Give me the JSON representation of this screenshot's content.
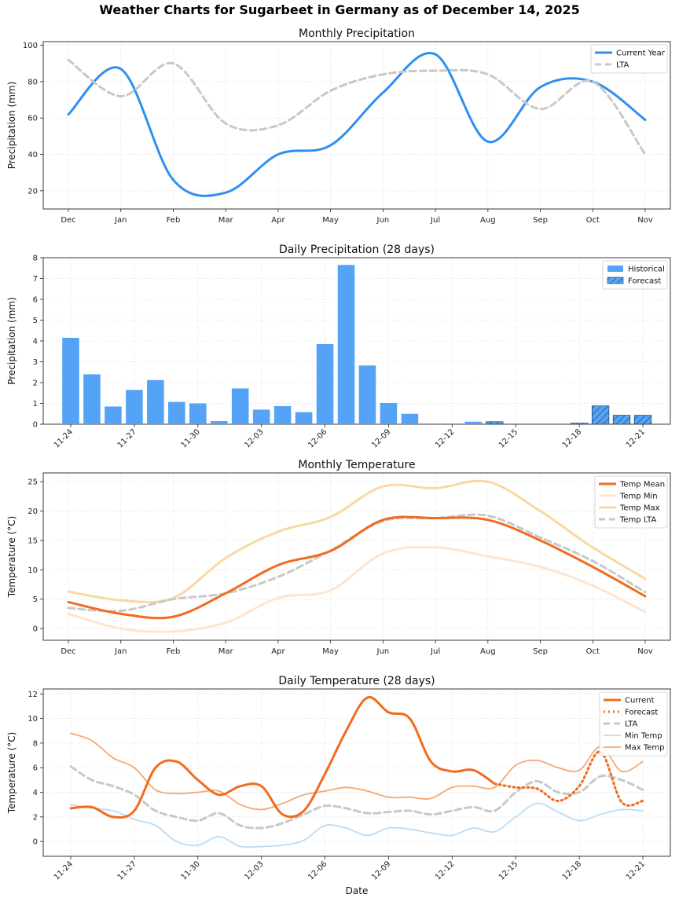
{
  "title": "Weather Charts for Sugarbeet in Germany as of December 14, 2025",
  "colors": {
    "current": "#2f8ff0",
    "lta": "#c8c8c8",
    "bar": "#55a3f7",
    "temp_mean": "#f26b1d",
    "temp_min": "#fde5cf",
    "temp_max": "#f9d9a2",
    "min_temp_daily": "#b9dcf6",
    "max_temp_daily": "#f4a873"
  },
  "chart_data": [
    {
      "type": "line",
      "title": "Monthly Precipitation",
      "xlabel": "",
      "ylabel": "Precipitation (mm)",
      "categories": [
        "Dec",
        "Jan",
        "Feb",
        "Mar",
        "Apr",
        "May",
        "Jun",
        "Jul",
        "Aug",
        "Sep",
        "Oct",
        "Nov"
      ],
      "ylim": [
        10,
        102
      ],
      "yticks": [
        20,
        40,
        60,
        80,
        100
      ],
      "legend_position": "top-right",
      "series": [
        {
          "name": "Current Year",
          "values": [
            62,
            87,
            26,
            19,
            40,
            45,
            74,
            95,
            47,
            77,
            80,
            59
          ]
        },
        {
          "name": "LTA",
          "values": [
            92,
            72,
            90,
            57,
            56,
            75,
            84,
            86,
            84,
            65,
            80,
            40
          ]
        }
      ]
    },
    {
      "type": "bar",
      "title": "Daily Precipitation (28 days)",
      "xlabel": "",
      "ylabel": "Precipitation (mm)",
      "categories": [
        "11-24",
        "11-25",
        "11-26",
        "11-27",
        "11-28",
        "11-29",
        "11-30",
        "12-01",
        "12-02",
        "12-03",
        "12-04",
        "12-05",
        "12-06",
        "12-07",
        "12-08",
        "12-09",
        "12-10",
        "12-11",
        "12-12",
        "12-13",
        "12-14",
        "12-15",
        "12-16",
        "12-17",
        "12-18",
        "12-19",
        "12-20",
        "12-21"
      ],
      "tick_labels": [
        "11-24",
        "11-27",
        "11-30",
        "12-03",
        "12-06",
        "12-09",
        "12-12",
        "12-15",
        "12-18",
        "12-21"
      ],
      "ylim": [
        0,
        8
      ],
      "yticks": [
        0,
        1,
        2,
        3,
        4,
        5,
        6,
        7,
        8
      ],
      "legend_position": "top-right",
      "series": [
        {
          "name": "Historical",
          "values": [
            4.15,
            2.4,
            0.85,
            1.65,
            2.12,
            1.07,
            1.0,
            0.15,
            1.72,
            0.7,
            0.87,
            0.58,
            3.85,
            7.65,
            2.82,
            1.02,
            0.5,
            0,
            0,
            0.12,
            null,
            null,
            null,
            null,
            null,
            null,
            null,
            null
          ]
        },
        {
          "name": "Forecast",
          "values": [
            null,
            null,
            null,
            null,
            null,
            null,
            null,
            null,
            null,
            null,
            null,
            null,
            null,
            null,
            null,
            null,
            null,
            null,
            null,
            null,
            0.12,
            0,
            0,
            0,
            0.05,
            0.88,
            0.43,
            0.43
          ]
        }
      ]
    },
    {
      "type": "line",
      "title": "Monthly Temperature",
      "xlabel": "",
      "ylabel": "Temperature (°C)",
      "categories": [
        "Dec",
        "Jan",
        "Feb",
        "Mar",
        "Apr",
        "May",
        "Jun",
        "Jul",
        "Aug",
        "Sep",
        "Oct",
        "Nov"
      ],
      "ylim": [
        -2,
        26.5
      ],
      "yticks": [
        0,
        5,
        10,
        15,
        20,
        25
      ],
      "legend_position": "top-right",
      "series": [
        {
          "name": "Temp Mean",
          "values": [
            4.5,
            2.5,
            2.0,
            6.0,
            10.8,
            13.2,
            18.5,
            18.8,
            18.5,
            15.0,
            10.5,
            5.5
          ]
        },
        {
          "name": "Temp Min",
          "values": [
            2.5,
            0,
            -0.5,
            1.0,
            5.2,
            6.5,
            12.8,
            13.8,
            12.3,
            10.5,
            7.3,
            2.8
          ]
        },
        {
          "name": "Temp Max",
          "values": [
            6.3,
            4.8,
            5.2,
            12.0,
            16.5,
            19.0,
            24.2,
            23.9,
            25.0,
            20.0,
            13.8,
            8.5
          ]
        },
        {
          "name": "Temp LTA",
          "values": [
            3.5,
            3.0,
            5.0,
            6.0,
            8.8,
            13.3,
            18.3,
            18.8,
            19.2,
            15.5,
            11.5,
            6.2
          ]
        }
      ]
    },
    {
      "type": "line",
      "title": "Daily Temperature (28 days)",
      "xlabel": "Date",
      "ylabel": "Temperature (°C)",
      "categories": [
        "11-24",
        "11-25",
        "11-26",
        "11-27",
        "11-28",
        "11-29",
        "11-30",
        "12-01",
        "12-02",
        "12-03",
        "12-04",
        "12-05",
        "12-06",
        "12-07",
        "12-08",
        "12-09",
        "12-10",
        "12-11",
        "12-12",
        "12-13",
        "12-14",
        "12-15",
        "12-16",
        "12-17",
        "12-18",
        "12-19",
        "12-20",
        "12-21"
      ],
      "tick_labels": [
        "11-24",
        "11-27",
        "11-30",
        "12-03",
        "12-06",
        "12-09",
        "12-12",
        "12-15",
        "12-18",
        "12-21"
      ],
      "ylim": [
        -1.2,
        12.4
      ],
      "yticks": [
        0,
        2,
        4,
        6,
        8,
        10,
        12
      ],
      "legend_position": "top-right",
      "series": [
        {
          "name": "Current",
          "values": [
            2.7,
            2.8,
            2.0,
            2.5,
            6.0,
            6.5,
            5.0,
            3.8,
            4.5,
            4.5,
            2.2,
            2.5,
            5.5,
            9.0,
            11.7,
            10.5,
            10.0,
            6.5,
            5.7,
            5.8,
            4.7,
            null,
            null,
            null,
            null,
            null,
            null,
            null
          ]
        },
        {
          "name": "Forecast",
          "values": [
            null,
            null,
            null,
            null,
            null,
            null,
            null,
            null,
            null,
            null,
            null,
            null,
            null,
            null,
            null,
            null,
            null,
            null,
            null,
            null,
            4.7,
            4.4,
            4.3,
            3.3,
            4.5,
            7.3,
            3.2,
            3.3
          ]
        },
        {
          "name": "LTA",
          "values": [
            6.1,
            5.0,
            4.5,
            3.8,
            2.5,
            2.0,
            1.7,
            2.3,
            1.3,
            1.1,
            1.5,
            2.2,
            2.9,
            2.7,
            2.3,
            2.4,
            2.5,
            2.2,
            2.5,
            2.8,
            2.5,
            4.0,
            4.9,
            4.0,
            4.0,
            5.3,
            5.0,
            4.2
          ]
        },
        {
          "name": "Min Temp",
          "values": [
            3.0,
            2.7,
            2.5,
            1.8,
            1.3,
            0,
            -0.3,
            0.4,
            -0.4,
            -0.4,
            -0.3,
            0.1,
            1.3,
            1.1,
            0.5,
            1.1,
            1.0,
            0.7,
            0.5,
            1.1,
            0.8,
            2.0,
            3.1,
            2.4,
            1.7,
            2.2,
            2.6,
            2.5
          ]
        },
        {
          "name": "Max Temp",
          "values": [
            8.8,
            8.2,
            6.8,
            6.0,
            4.2,
            3.9,
            4.0,
            4.1,
            3.0,
            2.6,
            3.1,
            3.8,
            4.1,
            4.4,
            4.1,
            3.6,
            3.6,
            3.5,
            4.4,
            4.5,
            4.4,
            6.2,
            6.6,
            6.0,
            5.8,
            7.7,
            5.7,
            6.5
          ]
        }
      ]
    }
  ]
}
